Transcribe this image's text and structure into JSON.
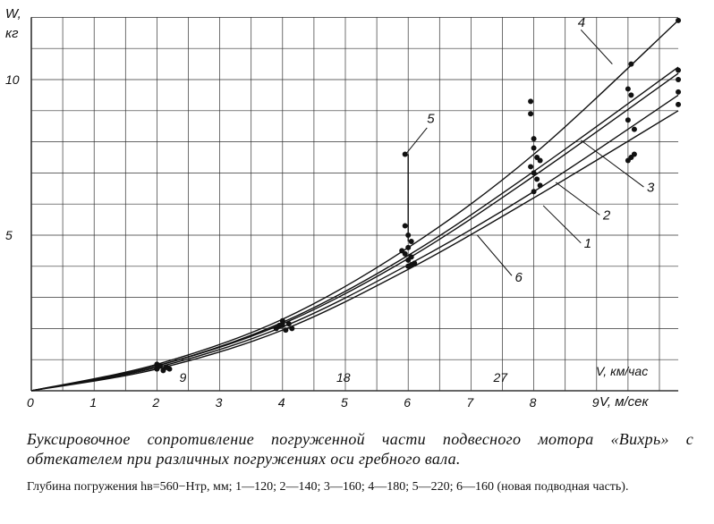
{
  "chart_data": {
    "type": "line",
    "title": "",
    "x_axis": {
      "label": "V, м/сек",
      "range": [
        0,
        10.3
      ],
      "ticks": [
        0,
        1,
        2,
        3,
        4,
        5,
        6,
        7,
        8,
        9
      ]
    },
    "secondary_x_axis": {
      "label": "V, км/час",
      "ticks": [
        {
          "value": 9,
          "at_mps": 2.5
        },
        {
          "value": 18,
          "at_mps": 5
        },
        {
          "value": 27,
          "at_mps": 7.5
        }
      ]
    },
    "y_axis": {
      "label_line1": "W,",
      "label_line2": "кг",
      "range": [
        0,
        12
      ],
      "ticks": [
        5,
        10
      ]
    },
    "grid": true,
    "series": [
      {
        "name": "1",
        "x": [
          0,
          2,
          4,
          6,
          8,
          10.3
        ],
        "y": [
          0,
          0.75,
          2.05,
          4.05,
          6.4,
          9.5
        ]
      },
      {
        "name": "2",
        "x": [
          0,
          2,
          4,
          6,
          8,
          10.3
        ],
        "y": [
          0,
          0.8,
          2.15,
          4.25,
          6.9,
          10.2
        ]
      },
      {
        "name": "3",
        "x": [
          0,
          2,
          4,
          6,
          8,
          10.3
        ],
        "y": [
          0,
          0.8,
          2.2,
          4.35,
          7.05,
          10.4
        ]
      },
      {
        "name": "4",
        "x": [
          0,
          2,
          4,
          6,
          8,
          10.3
        ],
        "y": [
          0,
          0.85,
          2.3,
          4.6,
          7.6,
          11.9
        ]
      },
      {
        "name": "5",
        "x": [
          6,
          6
        ],
        "y": [
          4.8,
          7.6
        ]
      },
      {
        "name": "6",
        "x": [
          0,
          2,
          4,
          6,
          8,
          10.3
        ],
        "y": [
          0,
          0.7,
          1.95,
          3.9,
          6.2,
          9.0
        ]
      }
    ],
    "label_positions": [
      {
        "name": "1",
        "x": 8.8,
        "y": 4.6
      },
      {
        "name": "2",
        "x": 9.1,
        "y": 5.5
      },
      {
        "name": "3",
        "x": 9.8,
        "y": 6.4
      },
      {
        "name": "4",
        "x": 8.7,
        "y": 11.7
      },
      {
        "name": "5",
        "x": 6.3,
        "y": 8.6
      },
      {
        "name": "6",
        "x": 7.7,
        "y": 3.5
      }
    ],
    "measured_points": [
      [
        2.0,
        0.7
      ],
      [
        2.05,
        0.8
      ],
      [
        2.1,
        0.65
      ],
      [
        2.15,
        0.75
      ],
      [
        2.0,
        0.85
      ],
      [
        2.2,
        0.7
      ],
      [
        3.9,
        2.0
      ],
      [
        4.0,
        2.1
      ],
      [
        4.05,
        1.95
      ],
      [
        4.1,
        2.15
      ],
      [
        4.0,
        2.25
      ],
      [
        4.15,
        2.0
      ],
      [
        3.95,
        2.1
      ],
      [
        5.95,
        7.6
      ],
      [
        5.95,
        5.3
      ],
      [
        6.0,
        5.0
      ],
      [
        6.05,
        4.8
      ],
      [
        6.0,
        4.6
      ],
      [
        5.95,
        4.4
      ],
      [
        6.05,
        4.3
      ],
      [
        6.0,
        4.2
      ],
      [
        6.1,
        4.1
      ],
      [
        6.0,
        4.0
      ],
      [
        5.9,
        4.5
      ],
      [
        6.05,
        4.05
      ],
      [
        7.95,
        9.3
      ],
      [
        7.95,
        8.9
      ],
      [
        8.0,
        8.1
      ],
      [
        8.0,
        7.8
      ],
      [
        8.05,
        7.5
      ],
      [
        7.95,
        7.2
      ],
      [
        8.0,
        7.0
      ],
      [
        8.05,
        6.8
      ],
      [
        8.1,
        6.6
      ],
      [
        8.0,
        6.4
      ],
      [
        8.1,
        7.4
      ],
      [
        9.55,
        10.5
      ],
      [
        9.5,
        9.7
      ],
      [
        9.55,
        9.5
      ],
      [
        9.5,
        8.7
      ],
      [
        9.6,
        8.4
      ],
      [
        9.55,
        7.5
      ],
      [
        9.5,
        7.4
      ],
      [
        9.6,
        7.6
      ],
      [
        10.3,
        11.9
      ],
      [
        10.3,
        10.3
      ],
      [
        10.3,
        10.0
      ],
      [
        10.3,
        9.6
      ],
      [
        10.3,
        9.2
      ]
    ]
  },
  "caption": "Буксировочное сопротивление погруженной части подвесного мотора «Вихрь» с обтекателем при различных погружениях оси гребного вала.",
  "note": "Глубина погружения hв=560−Hтр, мм; 1—120; 2—140; 3—160; 4—180; 5—220; 6—160 (новая подводная часть)."
}
